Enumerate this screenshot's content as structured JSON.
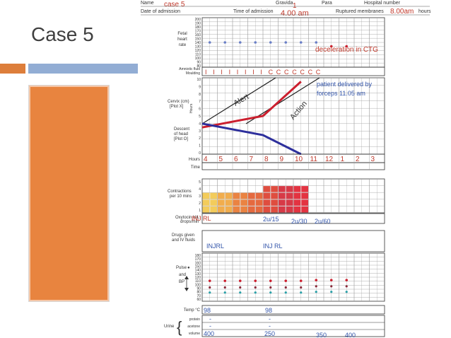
{
  "slide": {
    "title": "Case 5"
  },
  "partograph": {
    "header": {
      "name_label": "Name",
      "name_value": "case 5",
      "gravida_label": "Gravida",
      "gravida_value": "1",
      "para_label": "Para",
      "hospital_label": "Hospital number",
      "admission_date_label": "Date of admission",
      "admission_time_label": "Time of admission",
      "admission_time_value": "4.00 am",
      "membranes_label": "Ruptured membranes",
      "membranes_value": "8.00am",
      "hours_label": "hours"
    },
    "fhr": {
      "label": "Fetal heart rate",
      "ticks": [
        "200",
        "190",
        "180",
        "170",
        "160",
        "150",
        "140",
        "130",
        "120",
        "110",
        "100",
        "90",
        "80"
      ],
      "points_bpm": [
        140,
        140,
        140,
        140,
        140,
        140,
        140,
        140,
        130,
        130
      ],
      "note": "deceleration in CTG"
    },
    "liquor": {
      "label": "Amniotic fluid Moulding",
      "marks": [
        "I",
        "I",
        "I",
        "I",
        "I",
        "I",
        "I",
        "I",
        "C",
        "C",
        "C",
        "C",
        "C",
        "C",
        "C"
      ]
    },
    "cervix": {
      "label": "Cervix (cm) [Plot X]",
      "hours_axis_label": "Hours",
      "descent_label": "Descent of head [Plot O]",
      "ticks": [
        "10",
        "9",
        "8",
        "7",
        "6",
        "5",
        "4",
        "3",
        "2",
        "1",
        "0"
      ],
      "alert_label": "Alert",
      "action_label": "Action",
      "delivery_note_1": "patient delivered by",
      "delivery_note_2": "forceps 11.05 am",
      "dilatation_points": [
        [
          0,
          3.5
        ],
        [
          4,
          5
        ],
        [
          6.5,
          9.5
        ]
      ],
      "descent_points": [
        [
          0,
          4
        ],
        [
          4,
          2.5
        ],
        [
          6.5,
          0
        ]
      ],
      "hour_values": [
        "4",
        "5",
        "6",
        "7",
        "8",
        "9",
        "10",
        "11",
        "12",
        "1",
        "2",
        "3"
      ],
      "hours_row_label": "Hours",
      "time_row_label": "Time"
    },
    "contractions": {
      "label": "Contractions per 10 mins",
      "ticks": [
        "5",
        "4",
        "3",
        "2",
        "1"
      ],
      "intensity": [
        3,
        3,
        3,
        3,
        3,
        3,
        3,
        3,
        4,
        4,
        4,
        4,
        4,
        4
      ]
    },
    "oxytocin": {
      "label": "Oxytocin U/L drops/min",
      "entries": [
        "INJ RL",
        "2u/15",
        "2u/30",
        "2u/60"
      ]
    },
    "drugs": {
      "label": "Drugs given and IV fluids",
      "entries": [
        "INJRL",
        "INJ RL"
      ]
    },
    "pulse_bp": {
      "pulse_label": "Pulse",
      "and_label": "and",
      "bp_label": "BP",
      "ticks": [
        "180",
        "170",
        "160",
        "150",
        "140",
        "130",
        "120",
        "110",
        "100",
        "90",
        "80",
        "70",
        "60"
      ],
      "pulse_values": [
        110,
        110,
        110,
        110,
        110,
        110,
        110,
        112,
        112,
        112
      ],
      "systolic_values": [
        92,
        92,
        92,
        92,
        92,
        92,
        92,
        95,
        95,
        95
      ],
      "diastolic_values": [
        78,
        78,
        78,
        78,
        78,
        78,
        78,
        80,
        80,
        80
      ]
    },
    "temp": {
      "label": "Temp °C",
      "entries": [
        "98",
        "98"
      ]
    },
    "urine": {
      "label": "Urine",
      "protein_label": "protein",
      "acetone_label": "acetone",
      "volume_label": "volume",
      "protein_values": [
        "-",
        "-"
      ],
      "acetone_values": [
        "-",
        "-"
      ],
      "volume_values": [
        "400",
        "250",
        "350",
        "400"
      ]
    }
  }
}
